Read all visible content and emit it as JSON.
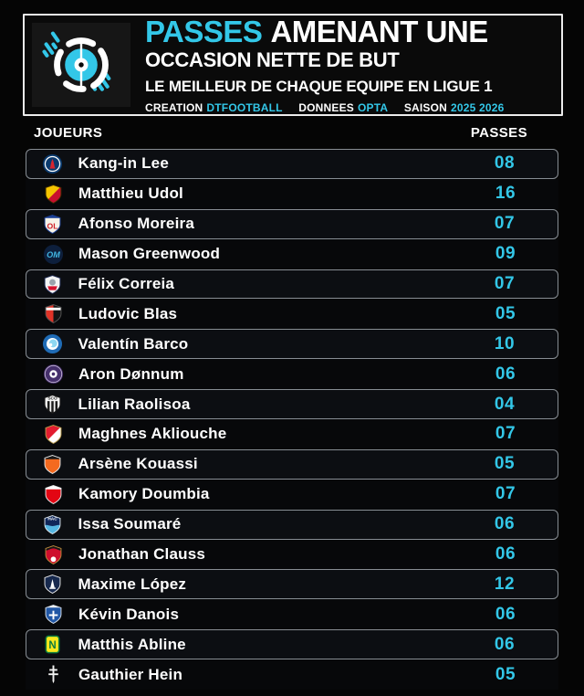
{
  "colors": {
    "accent": "#33C7E8",
    "background": "#050505",
    "header_border": "#ECECEC",
    "row_border": "#878D93",
    "row_bg": "#0C0E12",
    "text": "#FFFFFF"
  },
  "header": {
    "title_highlight": "PASSES",
    "title_main": "AMENANT UNE",
    "title_line2": "OCCASION NETTE DE BUT",
    "subtitle": "LE MEILLEUR DE CHAQUE EQUIPE EN LIGUE 1",
    "credits": [
      {
        "label": "CREATION",
        "value": "DTFOOTBALL"
      },
      {
        "label": "DONNEES",
        "value": "OPTA"
      },
      {
        "label": "SAISON",
        "value": "2025 2026"
      }
    ]
  },
  "columns": {
    "players": "JOUEURS",
    "passes": "PASSES"
  },
  "chart_data": {
    "type": "table",
    "title": "PASSES AMENANT UNE OCCASION NETTE DE BUT",
    "subtitle": "LE MEILLEUR DE CHAQUE EQUIPE EN LIGUE 1",
    "columns": [
      "JOUEURS",
      "PASSES"
    ],
    "rows": [
      {
        "team": "psg",
        "player": "Kang-in Lee",
        "passes": 8,
        "passes_display": "08",
        "crest": {
          "kind": "psg",
          "c1": "#0A3A6E",
          "c2": "#D8252F",
          "c3": "#FFFFFF"
        }
      },
      {
        "team": "lens",
        "player": "Matthieu Udol",
        "passes": 16,
        "passes_display": "16",
        "crest": {
          "kind": "diag",
          "c1": "#F5C400",
          "c2": "#C8102E",
          "c3": "#3A2A00"
        }
      },
      {
        "team": "lyon",
        "player": "Afonso Moreira",
        "passes": 7,
        "passes_display": "07",
        "crest": {
          "kind": "bandletter",
          "c1": "#F7F3E8",
          "c2": "#1B3F94",
          "c3": "#CE2029",
          "text": "OL"
        }
      },
      {
        "team": "marseille",
        "player": "Mason Greenwood",
        "passes": 9,
        "passes_display": "09",
        "crest": {
          "kind": "omcircle",
          "c1": "#0D1F3C",
          "c2": "#41B5E2",
          "text": "OM"
        }
      },
      {
        "team": "lille",
        "player": "Félix Correia",
        "passes": 7,
        "passes_display": "07",
        "crest": {
          "kind": "losc",
          "c1": "#F4F4F4",
          "c2": "#D6122E",
          "c3": "#1E2A52"
        }
      },
      {
        "team": "rennes",
        "player": "Ludovic Blas",
        "passes": 5,
        "passes_display": "05",
        "crest": {
          "kind": "halves",
          "c1": "#E13327",
          "c2": "#141414",
          "c3": "#FFFFFF"
        }
      },
      {
        "team": "strasbourg",
        "player": "Valentín Barco",
        "passes": 10,
        "passes_display": "10",
        "crest": {
          "kind": "swirl",
          "c1": "#1F6BB5",
          "c2": "#8ED8F2",
          "c3": "#FFFFFF"
        }
      },
      {
        "team": "toulouse",
        "player": "Aron Dønnum",
        "passes": 6,
        "passes_display": "06",
        "crest": {
          "kind": "ringdot",
          "c1": "#46306C",
          "c2": "#C5B8D6",
          "c3": "#FFFFFF"
        }
      },
      {
        "team": "angers",
        "player": "Lilian Raolisoa",
        "passes": 4,
        "passes_display": "04",
        "crest": {
          "kind": "stripes",
          "c1": "#F4F4F4",
          "c2": "#1A1A1A",
          "text": "SCO"
        }
      },
      {
        "team": "monaco",
        "player": "Maghnes Akliouche",
        "passes": 7,
        "passes_display": "07",
        "crest": {
          "kind": "diag",
          "c1": "#E21D30",
          "c2": "#FFFFFF",
          "c3": "#B89A4C"
        }
      },
      {
        "team": "lorient",
        "player": "Arsène Kouassi",
        "passes": 5,
        "passes_display": "05",
        "crest": {
          "kind": "band",
          "c1": "#F46A1F",
          "c2": "#191919",
          "c3": "#E8E8E8"
        }
      },
      {
        "team": "brest",
        "player": "Kamory Doumbia",
        "passes": 7,
        "passes_display": "07",
        "crest": {
          "kind": "band",
          "c1": "#E30613",
          "c2": "#FFFFFF",
          "c3": "#E8E8E8"
        }
      },
      {
        "team": "le-havre",
        "player": "Issa Soumaré",
        "passes": 6,
        "passes_display": "06",
        "crest": {
          "kind": "hac",
          "c1": "#10275A",
          "c2": "#55B7E3",
          "text": "HAC"
        }
      },
      {
        "team": "nice",
        "player": "Jonathan Clauss",
        "passes": 6,
        "passes_display": "06",
        "crest": {
          "kind": "nice",
          "c1": "#CE0E2D",
          "c2": "#151515",
          "c3": "#FFFFFF"
        }
      },
      {
        "team": "paris-fc",
        "player": "Maxime López",
        "passes": 12,
        "passes_display": "12",
        "crest": {
          "kind": "tower",
          "c1": "#17294E",
          "c2": "#FFFFFF",
          "c3": "#E8E8E8"
        }
      },
      {
        "team": "auxerre",
        "player": "Kévin Danois",
        "passes": 6,
        "passes_display": "06",
        "crest": {
          "kind": "aja",
          "c1": "#2157A5",
          "c2": "#F0F0F0",
          "c3": "#FFFFFF"
        }
      },
      {
        "team": "nantes",
        "player": "Matthis Abline",
        "passes": 6,
        "passes_display": "06",
        "crest": {
          "kind": "nletter",
          "c1": "#F8E71C",
          "c2": "#0B7B3E",
          "text": "N"
        }
      },
      {
        "team": "metz",
        "player": "Gauthier Hein",
        "passes": 5,
        "passes_display": "05",
        "crest": {
          "kind": "lorraine",
          "c1": "#F2F2F2"
        }
      }
    ]
  }
}
